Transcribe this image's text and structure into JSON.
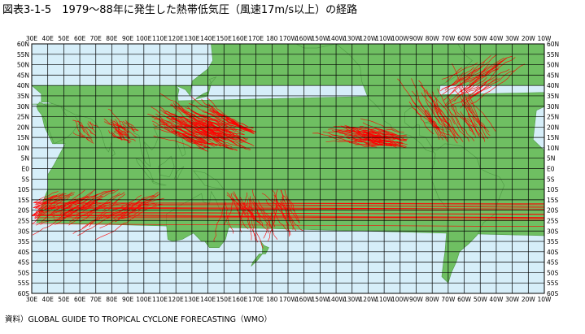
{
  "figure": {
    "title": "図表3-1-5　1979〜88年に発生した熱帯低気圧（風速17m/s以上）の経路",
    "source": "資料）GLOBAL GUIDE TO TROPICAL CYCLONE FORECASTING（WMO）"
  },
  "map": {
    "lon_labels": [
      "30E",
      "40E",
      "50E",
      "60E",
      "70E",
      "80E",
      "90E",
      "100E",
      "110E",
      "120E",
      "130E",
      "140E",
      "150E",
      "160E",
      "170E",
      "180",
      "170W",
      "160W",
      "150W",
      "140W",
      "130W",
      "120W",
      "110W",
      "100W",
      "90W",
      "80W",
      "70W",
      "60W",
      "50W",
      "40W",
      "30W",
      "20W",
      "10W"
    ],
    "lat_labels": [
      "60N",
      "55N",
      "50N",
      "45N",
      "40N",
      "35N",
      "30N",
      "25N",
      "20N",
      "15N",
      "10N",
      "5N",
      "E0",
      "5S",
      "10S",
      "15S",
      "20S",
      "25S",
      "30S",
      "35S",
      "40S",
      "45S",
      "50S",
      "55S",
      "60S"
    ],
    "colors": {
      "ocean": "#d6eef9",
      "land": "#6fbf62",
      "grid": "#000000",
      "track": "#ff0000"
    }
  }
}
